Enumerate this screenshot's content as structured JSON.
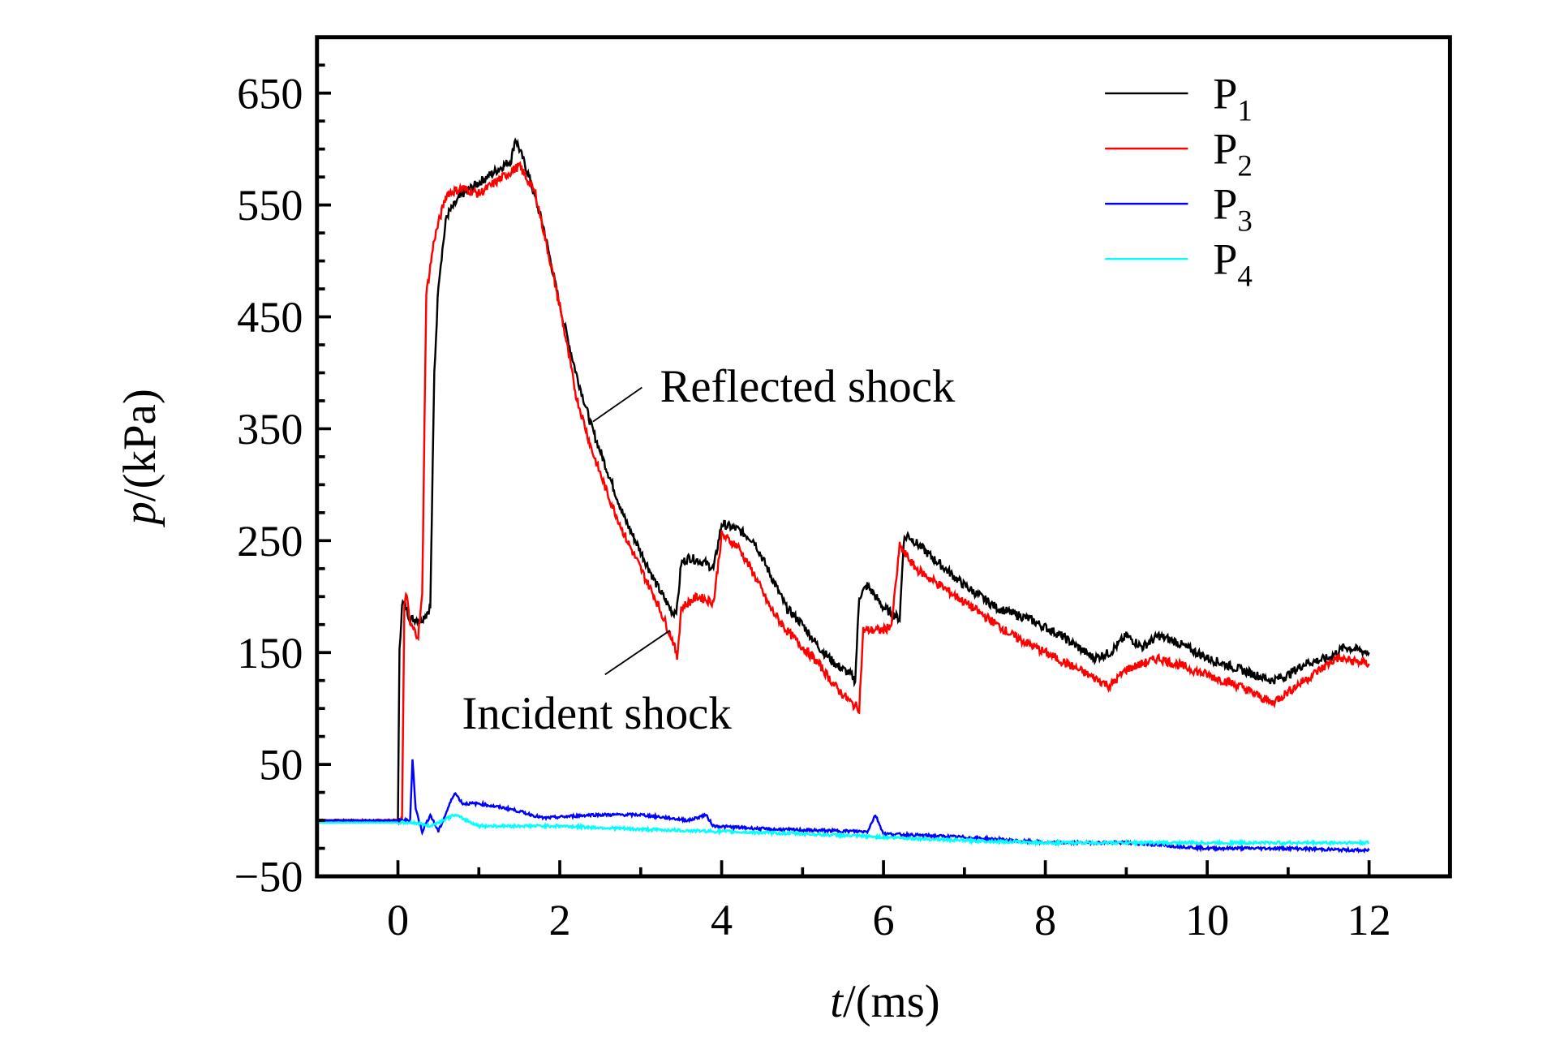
{
  "chart_data": {
    "type": "line",
    "title": "",
    "xlabel": "t/(ms)",
    "xlabel_var": "t",
    "xlabel_unit": "/(ms)",
    "ylabel": "p/(kPa)",
    "ylabel_var": "p",
    "ylabel_unit": "/(kPa)",
    "xlim": [
      -1,
      13
    ],
    "ylim": [
      -50,
      700
    ],
    "xticks": [
      0,
      2,
      4,
      6,
      8,
      10,
      12
    ],
    "xtick_labels": [
      "0",
      "2",
      "4",
      "6",
      "8",
      "10",
      "12"
    ],
    "yticks": [
      -50,
      50,
      150,
      250,
      350,
      450,
      550,
      650
    ],
    "ytick_labels": [
      "−50",
      "50",
      "150",
      "250",
      "350",
      "450",
      "550",
      "650"
    ],
    "grid": false,
    "legend_position": "top-right",
    "annotations": [
      {
        "text": "Reflected shock",
        "x": 2.4,
        "y": 360
      },
      {
        "text": "Incident shock",
        "x": 3.4,
        "y": 170
      }
    ],
    "series": [
      {
        "name": "P1",
        "label_main": "P",
        "label_sub": "1",
        "color": "#000000",
        "x": [
          -1,
          0,
          0.02,
          0.05,
          0.1,
          0.15,
          0.3,
          0.4,
          0.45,
          0.5,
          0.6,
          0.8,
          1.0,
          1.2,
          1.4,
          1.45,
          1.6,
          1.8,
          2.0,
          2.2,
          2.4,
          2.6,
          2.8,
          3.0,
          3.2,
          3.4,
          3.45,
          3.5,
          3.6,
          3.8,
          3.9,
          4.0,
          4.2,
          4.4,
          4.6,
          4.8,
          5.0,
          5.2,
          5.4,
          5.6,
          5.65,
          5.7,
          5.8,
          6.0,
          6.2,
          6.25,
          6.3,
          6.6,
          7.0,
          7.4,
          7.8,
          8.2,
          8.6,
          8.8,
          9.0,
          9.2,
          9.4,
          9.6,
          10.0,
          10.4,
          10.8,
          11.0,
          11.2,
          11.5,
          11.7,
          12.0
        ],
        "y": [
          0,
          0,
          150,
          195,
          190,
          180,
          180,
          190,
          400,
          480,
          540,
          560,
          570,
          580,
          590,
          610,
          580,
          530,
          460,
          400,
          350,
          310,
          270,
          240,
          210,
          185,
          190,
          230,
          235,
          230,
          225,
          265,
          260,
          250,
          220,
          190,
          175,
          155,
          140,
          130,
          125,
          200,
          210,
          190,
          180,
          250,
          255,
          235,
          210,
          190,
          180,
          165,
          145,
          150,
          165,
          155,
          165,
          160,
          145,
          135,
          125,
          130,
          140,
          145,
          155,
          150
        ]
      },
      {
        "name": "P2",
        "label_main": "P",
        "label_sub": "2",
        "color": "#ff0000",
        "x": [
          -1,
          0.05,
          0.08,
          0.1,
          0.15,
          0.25,
          0.3,
          0.35,
          0.45,
          0.6,
          0.8,
          1.0,
          1.2,
          1.5,
          1.7,
          2.0,
          2.2,
          2.4,
          2.6,
          2.8,
          3.0,
          3.2,
          3.4,
          3.45,
          3.5,
          3.7,
          3.9,
          4.0,
          4.2,
          4.4,
          4.6,
          4.8,
          5.0,
          5.2,
          5.4,
          5.6,
          5.7,
          5.75,
          6.0,
          6.1,
          6.2,
          6.4,
          6.8,
          7.2,
          7.6,
          8.0,
          8.4,
          8.8,
          9.0,
          9.4,
          9.6,
          10.0,
          10.4,
          10.8,
          11.0,
          11.4,
          11.6,
          12.0
        ],
        "y": [
          0,
          0,
          190,
          205,
          175,
          165,
          200,
          470,
          520,
          560,
          565,
          560,
          570,
          585,
          560,
          460,
          380,
          330,
          290,
          255,
          225,
          195,
          160,
          145,
          190,
          200,
          195,
          255,
          245,
          220,
          190,
          170,
          155,
          140,
          120,
          105,
          100,
          170,
          170,
          175,
          245,
          225,
          205,
          185,
          165,
          150,
          135,
          120,
          135,
          145,
          140,
          130,
          120,
          105,
          115,
          135,
          145,
          140
        ]
      },
      {
        "name": "P3",
        "label_main": "P",
        "label_sub": "3",
        "color": "#0000ff",
        "x": [
          -1,
          0.15,
          0.18,
          0.22,
          0.3,
          0.4,
          0.5,
          0.7,
          0.8,
          1.0,
          1.4,
          1.8,
          2.4,
          3.0,
          3.6,
          3.8,
          3.9,
          4.6,
          5.8,
          5.9,
          6.0,
          7.0,
          8.0,
          9.0,
          10.0,
          11.0,
          12.0
        ],
        "y": [
          0,
          0,
          55,
          10,
          -10,
          5,
          -10,
          25,
          15,
          15,
          10,
          2,
          5,
          5,
          0,
          5,
          -5,
          -8,
          -10,
          5,
          -12,
          -15,
          -20,
          -20,
          -25,
          -25,
          -27
        ]
      },
      {
        "name": "P4",
        "label_main": "P",
        "label_sub": "4",
        "color": "#00ffff",
        "x": [
          -1,
          0.2,
          0.4,
          0.7,
          1.0,
          2.0,
          3.0,
          4.0,
          5.0,
          6.0,
          7.0,
          8.0,
          9.0,
          10.0,
          11.0,
          12.0
        ],
        "y": [
          -2,
          -2,
          -5,
          5,
          -5,
          -5,
          -8,
          -10,
          -12,
          -15,
          -18,
          -20,
          -20,
          -20,
          -20,
          -20
        ]
      }
    ]
  }
}
